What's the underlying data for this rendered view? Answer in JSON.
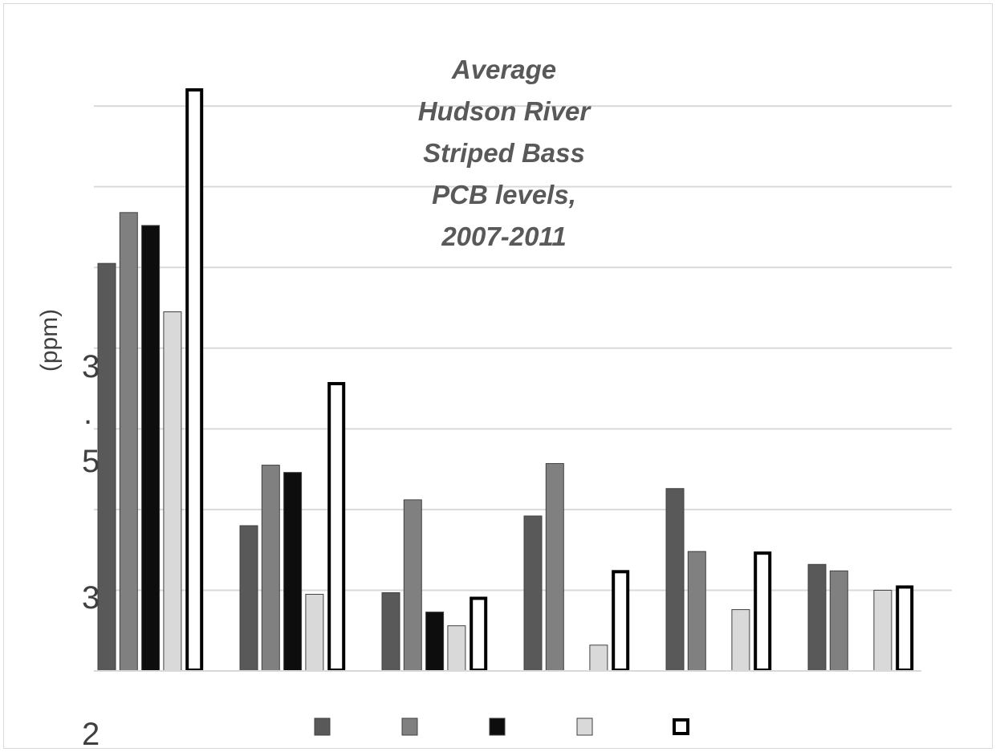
{
  "chart_data": {
    "type": "bar",
    "title_lines": [
      "Average",
      "Hudson River",
      "Striped Bass",
      "PCB levels,",
      "2007-2011"
    ],
    "ylabel": "(ppm)",
    "y_tick_labels": [
      "3",
      ".",
      "5",
      "3",
      "2"
    ],
    "categories": [
      "",
      "",
      "",
      "",
      "",
      ""
    ],
    "ylim": [
      0,
      7.2
    ],
    "gridlines": [
      1,
      2,
      3,
      4,
      5,
      6,
      7
    ],
    "legend_placement": "bottom",
    "series": [
      {
        "color": "#595959",
        "style": "solid",
        "values": [
          5.05,
          1.8,
          0.97,
          1.92,
          2.26,
          1.32
        ]
      },
      {
        "color": "#808080",
        "style": "solid",
        "values": [
          5.68,
          2.55,
          2.12,
          2.57,
          1.48,
          1.24
        ]
      },
      {
        "color": "#0d0d0d",
        "style": "solid",
        "values": [
          5.52,
          2.46,
          0.73,
          0,
          0,
          0
        ]
      },
      {
        "color": "#d9d9d9",
        "style": "solid",
        "values": [
          4.45,
          0.95,
          0.56,
          0.32,
          0.76,
          1.0
        ]
      },
      {
        "color": "#ffffff",
        "style": "outline",
        "values": [
          7.2,
          3.56,
          0.9,
          1.23,
          1.46,
          1.04
        ]
      }
    ]
  }
}
